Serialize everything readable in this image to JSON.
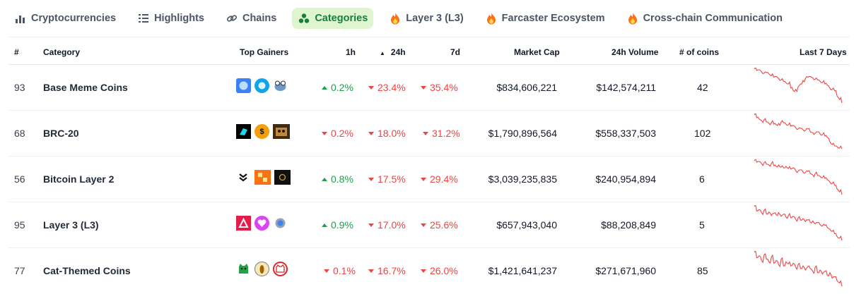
{
  "tabs": [
    {
      "label": "Cryptocurrencies",
      "icon": "bar-chart-icon",
      "active": false
    },
    {
      "label": "Highlights",
      "icon": "list-icon",
      "active": false
    },
    {
      "label": "Chains",
      "icon": "link-icon",
      "active": false
    },
    {
      "label": "Categories",
      "icon": "categories-icon",
      "active": true
    },
    {
      "label": "Layer 3 (L3)",
      "icon": "fire-icon",
      "active": false
    },
    {
      "label": "Farcaster Ecosystem",
      "icon": "fire-icon",
      "active": false
    },
    {
      "label": "Cross-chain Communication",
      "icon": "fire-icon",
      "active": false
    }
  ],
  "columns": {
    "rank": "#",
    "category": "Category",
    "top_gainers": "Top Gainers",
    "h1": "1h",
    "h24": "24h",
    "d7": "7d",
    "market_cap": "Market Cap",
    "volume": "24h Volume",
    "coins": "# of coins",
    "last7": "Last 7 Days",
    "sorted_column": "24h"
  },
  "rows": [
    {
      "rank": "93",
      "name": "Base Meme Coins",
      "h1": "0.2%",
      "h1_dir": "up",
      "h24": "23.4%",
      "h24_dir": "down",
      "d7": "35.4%",
      "d7_dir": "down",
      "market_cap": "$834,606,221",
      "volume": "$142,574,211",
      "coins": "42",
      "gainer_icons": [
        "coin-icon-blue",
        "coin-icon-blue",
        "coin-icon-frog"
      ],
      "spark": [
        100,
        98,
        99,
        96,
        94,
        95,
        93,
        90,
        88,
        89,
        86,
        84,
        82,
        80,
        78,
        72,
        68,
        70,
        74,
        78,
        83,
        86,
        88,
        89,
        87,
        85,
        84,
        82,
        80,
        78,
        76,
        72,
        70,
        68,
        60,
        55,
        50
      ]
    },
    {
      "rank": "68",
      "name": "BRC-20",
      "h1": "0.2%",
      "h1_dir": "down",
      "h24": "18.0%",
      "h24_dir": "down",
      "d7": "31.2%",
      "d7_dir": "down",
      "market_cap": "$1,790,896,564",
      "volume": "$558,337,503",
      "coins": "102",
      "gainer_icons": [
        "coin-icon-black",
        "coin-icon-orange",
        "coin-icon-dark"
      ],
      "spark": [
        100,
        96,
        94,
        92,
        93,
        90,
        88,
        89,
        87,
        86,
        88,
        90,
        89,
        87,
        86,
        84,
        85,
        82,
        80,
        81,
        79,
        78,
        80,
        76,
        75,
        74,
        76,
        73,
        72,
        70,
        68,
        62,
        58,
        56,
        55,
        53,
        52
      ]
    },
    {
      "rank": "56",
      "name": "Bitcoin Layer 2",
      "h1": "0.8%",
      "h1_dir": "up",
      "h24": "17.5%",
      "h24_dir": "down",
      "d7": "29.4%",
      "d7_dir": "down",
      "market_cap": "$3,039,235,835",
      "volume": "$240,954,894",
      "coins": "6",
      "gainer_icons": [
        "coin-icon-stacks",
        "coin-icon-orange-square",
        "coin-icon-black-square"
      ],
      "spark": [
        100,
        98,
        99,
        96,
        97,
        95,
        94,
        96,
        93,
        92,
        94,
        91,
        90,
        92,
        89,
        88,
        90,
        86,
        85,
        87,
        84,
        83,
        85,
        82,
        80,
        82,
        79,
        78,
        76,
        75,
        73,
        70,
        68,
        65,
        60,
        56,
        52
      ]
    },
    {
      "rank": "95",
      "name": "Layer 3 (L3)",
      "h1": "0.9%",
      "h1_dir": "up",
      "h24": "17.0%",
      "h24_dir": "down",
      "d7": "25.6%",
      "d7_dir": "down",
      "market_cap": "$657,943,040",
      "volume": "$88,208,849",
      "coins": "5",
      "gainer_icons": [
        "coin-icon-red-triangle",
        "coin-icon-magenta",
        "coin-icon-blue-badge"
      ],
      "spark": [
        100,
        94,
        96,
        92,
        95,
        90,
        93,
        88,
        91,
        89,
        92,
        87,
        90,
        86,
        88,
        85,
        87,
        83,
        85,
        82,
        84,
        80,
        82,
        79,
        81,
        77,
        79,
        76,
        74,
        75,
        72,
        70,
        67,
        64,
        60,
        58,
        55
      ]
    },
    {
      "rank": "77",
      "name": "Cat-Themed Coins",
      "h1": "0.1%",
      "h1_dir": "down",
      "h24": "16.7%",
      "h24_dir": "down",
      "d7": "26.0%",
      "d7_dir": "down",
      "market_cap": "$1,421,641,237",
      "volume": "$271,671,960",
      "coins": "85",
      "gainer_icons": [
        "coin-icon-green-cat",
        "coin-icon-gold",
        "coin-icon-red-cat"
      ],
      "spark": [
        100,
        92,
        95,
        88,
        96,
        90,
        86,
        93,
        84,
        88,
        82,
        90,
        80,
        86,
        83,
        80,
        84,
        78,
        82,
        76,
        80,
        74,
        79,
        76,
        72,
        78,
        70,
        74,
        68,
        72,
        66,
        70,
        62,
        64,
        58,
        55,
        50
      ]
    }
  ],
  "colors": {
    "up": "#16a34a",
    "down": "#ef4444",
    "active_tab_bg": "#dff5cf",
    "active_tab_text": "#15803d",
    "spark": "#ef4444"
  }
}
